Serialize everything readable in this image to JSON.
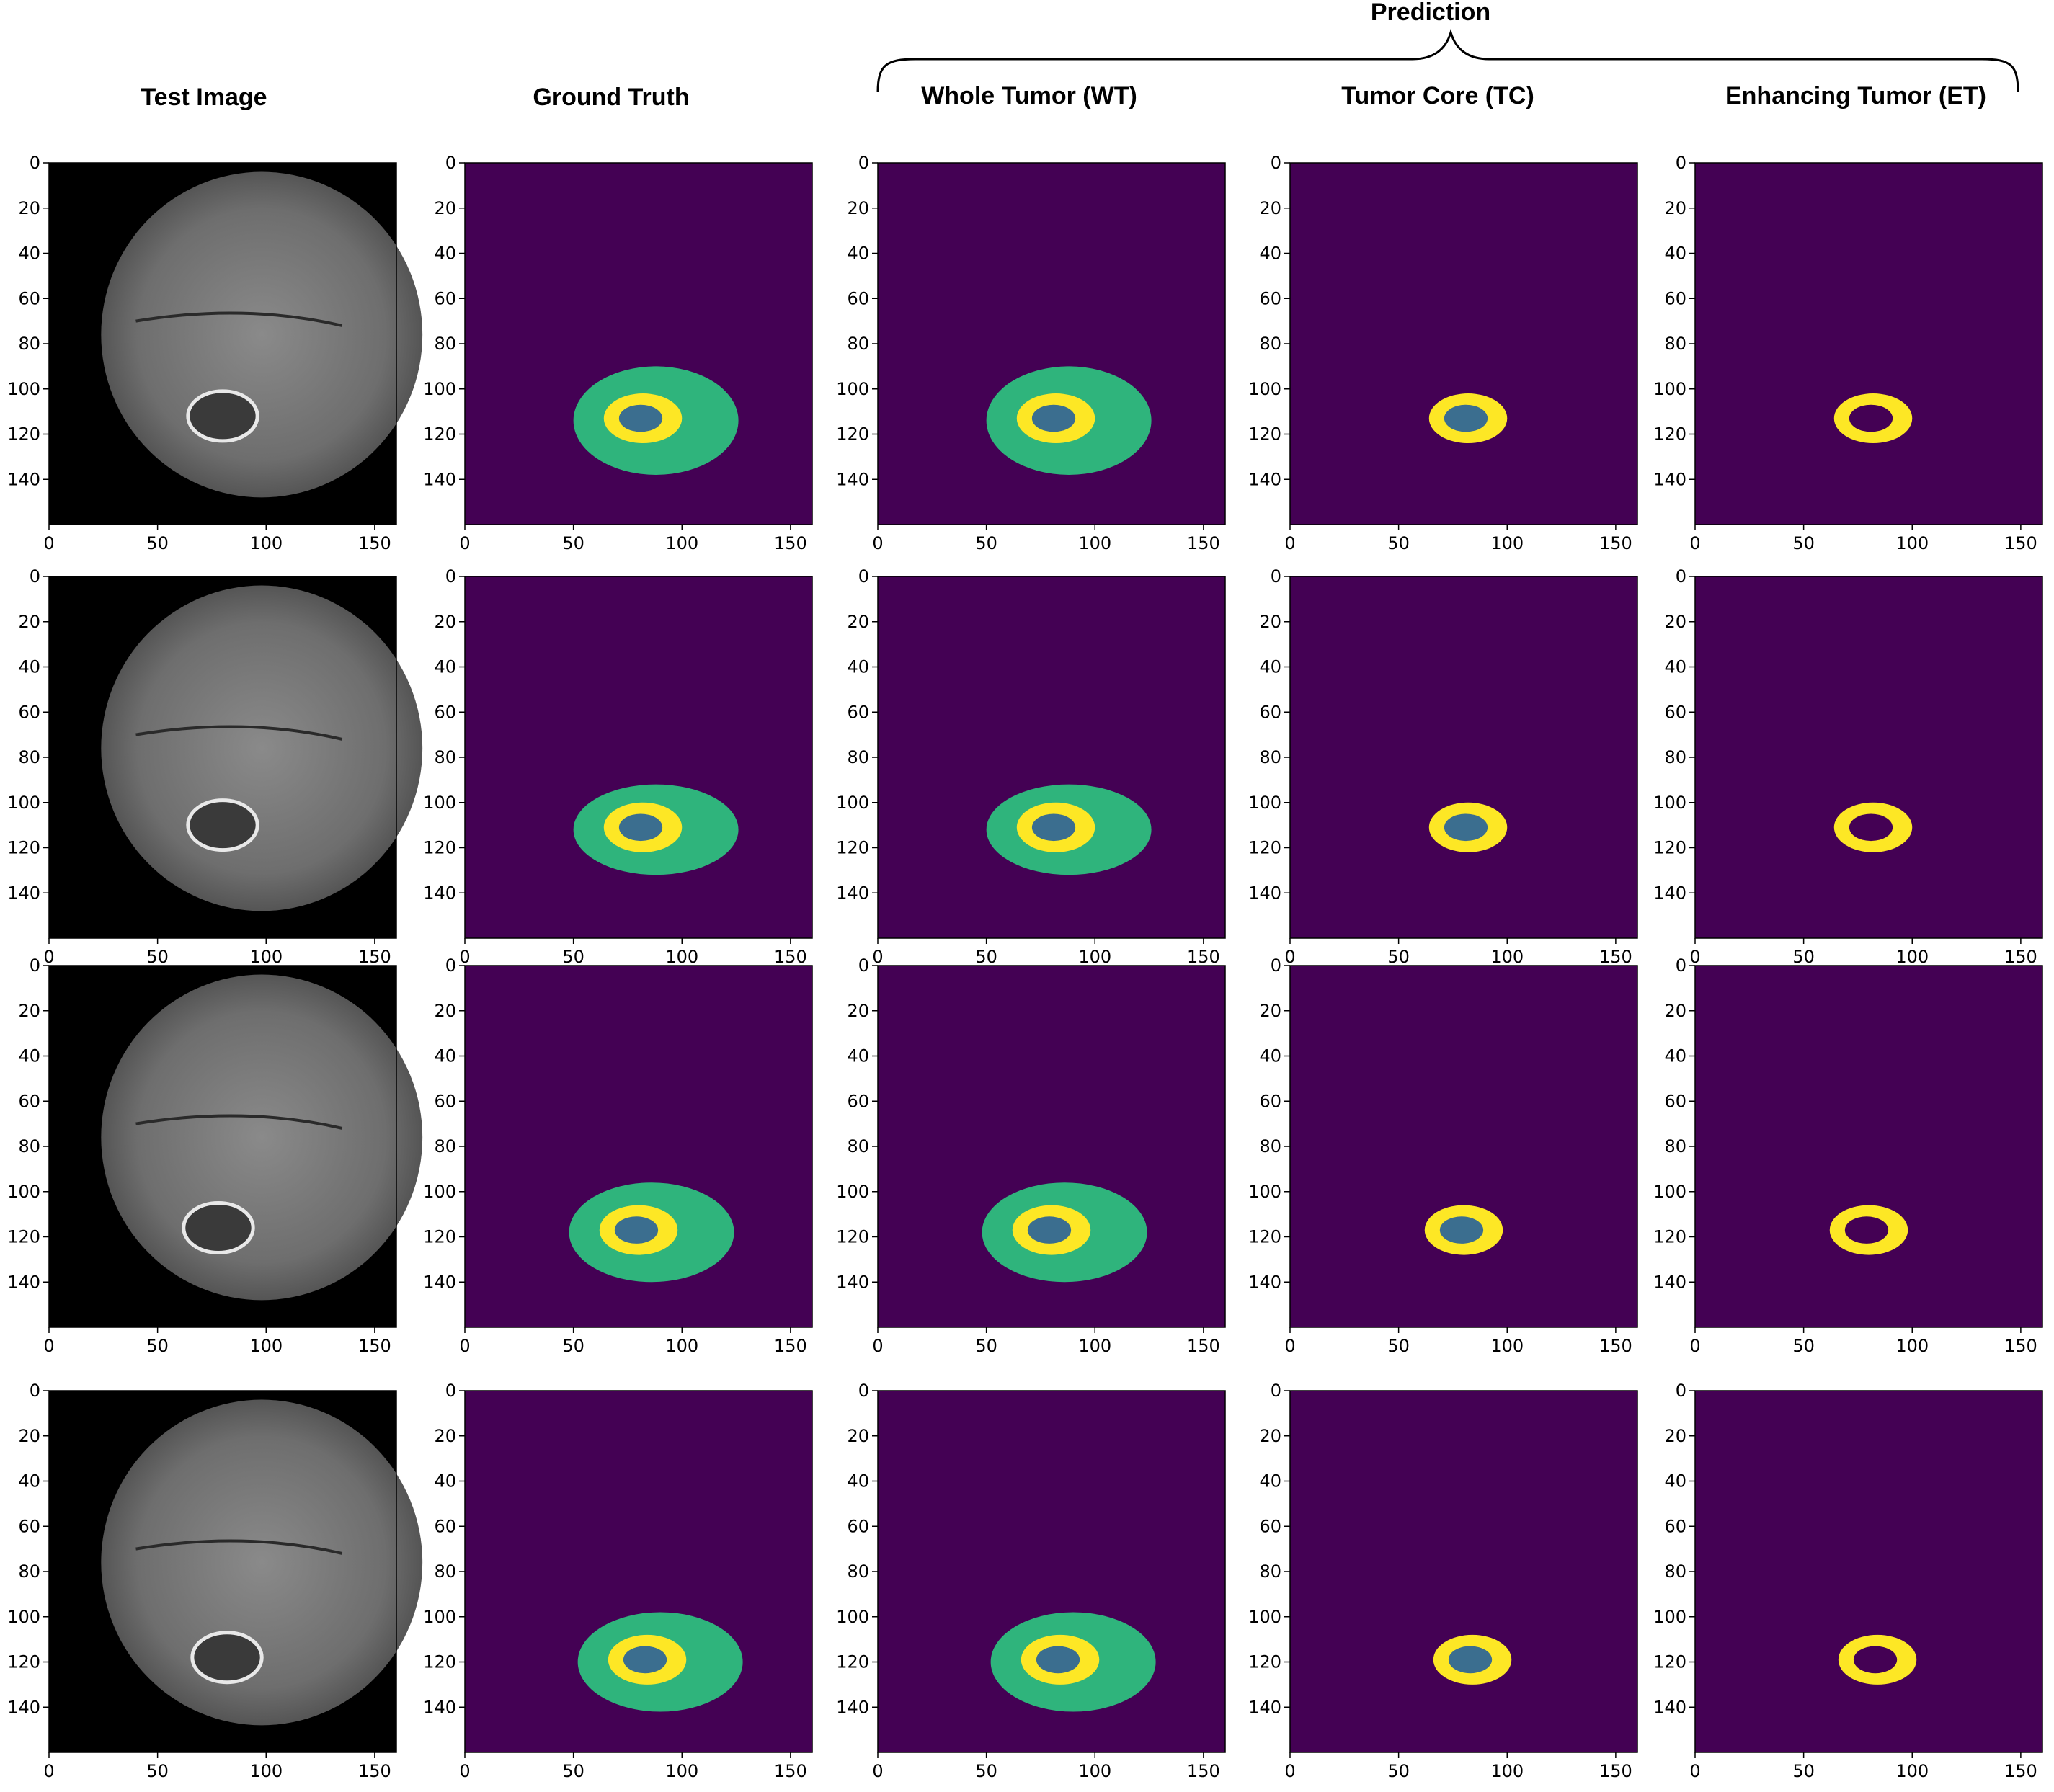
{
  "prediction_label": "Prediction",
  "columns": [
    {
      "key": "test",
      "title": "Test Image"
    },
    {
      "key": "gt",
      "title": "Ground Truth"
    },
    {
      "key": "wt",
      "title": "Whole Tumor (WT)"
    },
    {
      "key": "tc",
      "title": "Tumor Core (TC)"
    },
    {
      "key": "et",
      "title": "Enhancing Tumor (ET)"
    }
  ],
  "axes": {
    "x_ticks": [
      "0",
      "50",
      "100",
      "150"
    ],
    "y_ticks": [
      "0",
      "20",
      "40",
      "60",
      "80",
      "100",
      "120",
      "140"
    ],
    "x_range": [
      0,
      160
    ],
    "y_range": [
      0,
      160
    ]
  },
  "colors": {
    "background_class": "#440154",
    "edema": "#2FB47C",
    "enhancing": "#FDE725",
    "necrotic_core": "#3B6E8F",
    "mri_background": "#000000"
  },
  "rows": [
    {
      "cx": 88,
      "cy": 114,
      "ry": 24
    },
    {
      "cx": 88,
      "cy": 112,
      "ry": 20
    },
    {
      "cx": 86,
      "cy": 118,
      "ry": 22
    },
    {
      "cx": 90,
      "cy": 120,
      "ry": 22
    }
  ]
}
